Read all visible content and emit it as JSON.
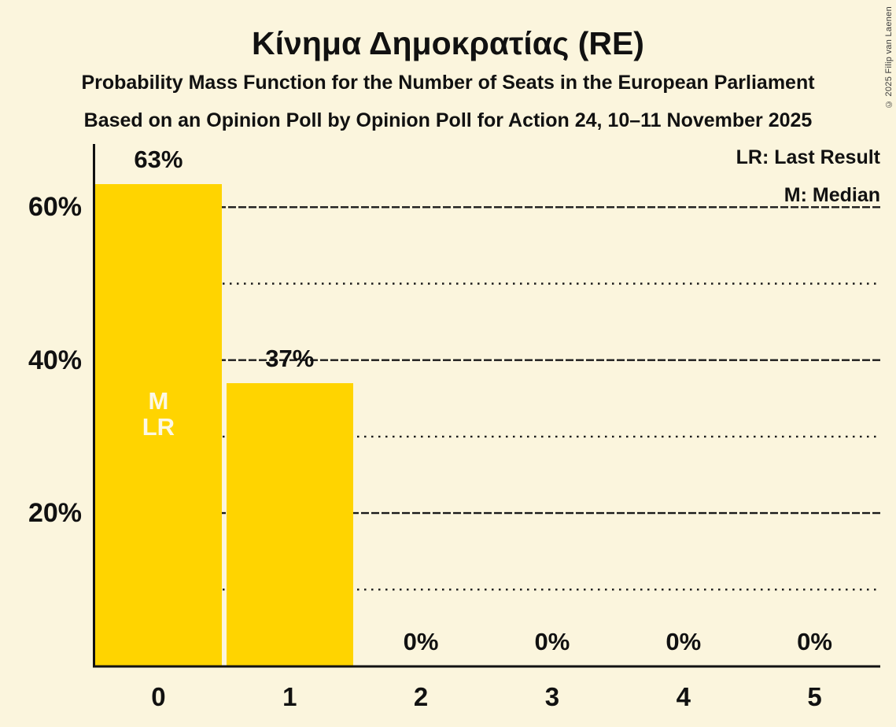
{
  "header": {
    "title": "Κίνημα Δημοκρατίας (RE)",
    "subtitle1": "Probability Mass Function for the Number of Seats in the European Parliament",
    "subtitle2": "Based on an Opinion Poll by Opinion Poll for Action 24, 10–11 November 2025"
  },
  "legend": {
    "last_result": "LR: Last Result",
    "median": "M: Median"
  },
  "copyright": "© 2025 Filip van Laenen",
  "colors": {
    "background": "#FBF5DD",
    "bar": "#FFD400",
    "text": "#111111",
    "annotation_text": "#FCF8E6"
  },
  "chart_data": {
    "type": "bar",
    "title": "Κίνημα Δημοκρατίας (RE)",
    "categories": [
      "0",
      "1",
      "2",
      "3",
      "4",
      "5"
    ],
    "values": [
      63,
      37,
      0,
      0,
      0,
      0
    ],
    "value_labels": [
      "63%",
      "37%",
      "0%",
      "0%",
      "0%",
      "0%"
    ],
    "ylim": [
      0,
      68
    ],
    "ytick_values": [
      20,
      40,
      60
    ],
    "ytick_labels": [
      "20%",
      "40%",
      "60%"
    ],
    "major_gridlines": [
      20,
      40,
      60
    ],
    "minor_gridlines": [
      10,
      30,
      50
    ],
    "grid": "horizontal only; majors near-solid dashed, minors dotted",
    "legend_position": "top-right",
    "bar_annotations": [
      {
        "category_index": 0,
        "lines": [
          "M",
          "LR"
        ]
      }
    ]
  }
}
